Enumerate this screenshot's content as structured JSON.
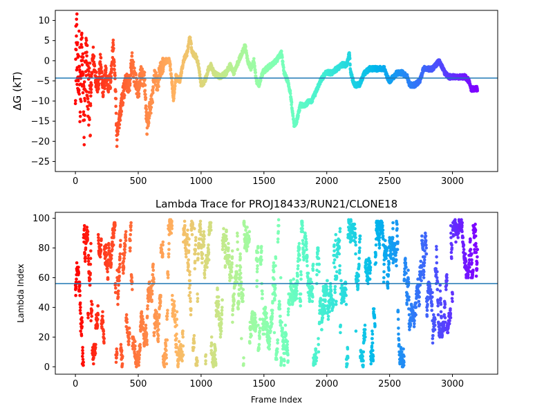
{
  "chart_data": [
    {
      "type": "scatter",
      "ylabel": "ΔG (kT)",
      "xlabel": "",
      "title": "",
      "xlim": [
        -160,
        3360
      ],
      "ylim": [
        -27.5,
        12.5
      ],
      "x_ticks": [
        0,
        500,
        1000,
        1500,
        2000,
        2500,
        3000
      ],
      "y_ticks": [
        10,
        5,
        0,
        -5,
        -10,
        -15,
        -20,
        -25
      ],
      "reference_line": -4.3,
      "colormap": "rainbow (red at start → violet at end)",
      "n_frames": 3200,
      "trace_anchors": [
        [
          0,
          -2
        ],
        [
          10,
          6
        ],
        [
          20,
          -8
        ],
        [
          30,
          2
        ],
        [
          40,
          -12
        ],
        [
          50,
          4
        ],
        [
          60,
          -6
        ],
        [
          70,
          -14
        ],
        [
          80,
          -4
        ],
        [
          90,
          0
        ],
        [
          100,
          -8
        ],
        [
          120,
          -10
        ],
        [
          140,
          2
        ],
        [
          160,
          -4
        ],
        [
          180,
          -6
        ],
        [
          200,
          0
        ],
        [
          220,
          -8
        ],
        [
          240,
          -3
        ],
        [
          260,
          -6
        ],
        [
          280,
          -5
        ],
        [
          300,
          4
        ],
        [
          320,
          -8
        ],
        [
          330,
          -20
        ],
        [
          350,
          -14
        ],
        [
          370,
          -10
        ],
        [
          400,
          -5
        ],
        [
          430,
          -6
        ],
        [
          450,
          0
        ],
        [
          470,
          -4
        ],
        [
          500,
          -8
        ],
        [
          520,
          -3
        ],
        [
          550,
          -5
        ],
        [
          570,
          -17
        ],
        [
          590,
          -12
        ],
        [
          610,
          -10
        ],
        [
          630,
          -3
        ],
        [
          650,
          -6
        ],
        [
          680,
          -2
        ],
        [
          700,
          -1
        ],
        [
          720,
          0
        ],
        [
          750,
          0
        ],
        [
          770,
          -6
        ],
        [
          780,
          -10
        ],
        [
          800,
          -4
        ],
        [
          830,
          -5
        ],
        [
          860,
          0
        ],
        [
          890,
          2
        ],
        [
          910,
          6
        ],
        [
          930,
          2
        ],
        [
          960,
          1
        ],
        [
          980,
          -1
        ],
        [
          1000,
          -6
        ],
        [
          1030,
          -5
        ],
        [
          1060,
          -2
        ],
        [
          1080,
          -1
        ],
        [
          1100,
          -3
        ],
        [
          1150,
          -4
        ],
        [
          1200,
          -3
        ],
        [
          1230,
          -1
        ],
        [
          1260,
          -3
        ],
        [
          1300,
          0
        ],
        [
          1340,
          3
        ],
        [
          1350,
          4
        ],
        [
          1370,
          0
        ],
        [
          1400,
          -2
        ],
        [
          1420,
          0
        ],
        [
          1440,
          -5
        ],
        [
          1460,
          -6
        ],
        [
          1490,
          -3
        ],
        [
          1520,
          -2
        ],
        [
          1560,
          -1
        ],
        [
          1600,
          0
        ],
        [
          1640,
          2
        ],
        [
          1660,
          -3
        ],
        [
          1690,
          -5
        ],
        [
          1710,
          -8
        ],
        [
          1740,
          -16
        ],
        [
          1760,
          -15
        ],
        [
          1790,
          -11
        ],
        [
          1830,
          -11
        ],
        [
          1860,
          -10
        ],
        [
          1880,
          -10
        ],
        [
          1910,
          -8
        ],
        [
          1950,
          -5
        ],
        [
          1990,
          -3
        ],
        [
          2040,
          -3
        ],
        [
          2080,
          -2
        ],
        [
          2120,
          -1
        ],
        [
          2160,
          -1
        ],
        [
          2180,
          2
        ],
        [
          2190,
          -3
        ],
        [
          2220,
          -6
        ],
        [
          2260,
          -6
        ],
        [
          2300,
          -3
        ],
        [
          2340,
          -2
        ],
        [
          2380,
          -2
        ],
        [
          2420,
          -2
        ],
        [
          2460,
          -2
        ],
        [
          2480,
          -4
        ],
        [
          2500,
          -5
        ],
        [
          2530,
          -4
        ],
        [
          2560,
          -3
        ],
        [
          2600,
          -3
        ],
        [
          2640,
          -4
        ],
        [
          2660,
          -6
        ],
        [
          2700,
          -6
        ],
        [
          2740,
          -5
        ],
        [
          2770,
          -2
        ],
        [
          2800,
          -2
        ],
        [
          2840,
          -2
        ],
        [
          2870,
          -1
        ],
        [
          2890,
          0
        ],
        [
          2910,
          -1
        ],
        [
          2940,
          -3
        ],
        [
          2970,
          -4
        ],
        [
          3000,
          -4
        ],
        [
          3050,
          -4
        ],
        [
          3100,
          -4
        ],
        [
          3130,
          -5
        ],
        [
          3150,
          -7
        ],
        [
          3200,
          -7
        ]
      ]
    },
    {
      "type": "scatter",
      "title": "Lambda Trace for PROJ18433/RUN21/CLONE18",
      "xlabel": "Frame Index",
      "ylabel": "Lambda Index",
      "xlim": [
        -160,
        3360
      ],
      "ylim": [
        -5,
        104
      ],
      "x_ticks": [
        0,
        500,
        1000,
        1500,
        2000,
        2500,
        3000
      ],
      "y_ticks": [
        0,
        20,
        40,
        60,
        80,
        100
      ],
      "reference_line": 56,
      "colormap": "rainbow (red at start → violet at end)",
      "n_frames": 3200,
      "value_range": [
        0,
        99
      ],
      "segments": [
        {
          "x_range": [
            0,
            100
          ],
          "y_range": [
            0,
            99
          ]
        },
        {
          "x_range": [
            100,
            1700
          ],
          "y_range": [
            0,
            99
          ]
        },
        {
          "x_range": [
            1700,
            1800
          ],
          "y_range": [
            40,
            99
          ]
        },
        {
          "x_range": [
            1800,
            2700
          ],
          "y_range": [
            0,
            99
          ]
        },
        {
          "x_range": [
            2700,
            2880
          ],
          "y_range": [
            0,
            90
          ]
        },
        {
          "x_range": [
            2880,
            3000
          ],
          "y_range": [
            20,
            99
          ]
        },
        {
          "x_range": [
            3000,
            3100
          ],
          "y_range": [
            10,
            99
          ]
        },
        {
          "x_range": [
            3100,
            3200
          ],
          "y_range": [
            60,
            99
          ]
        }
      ]
    }
  ],
  "colors": {
    "reference_line": "#1f77b4",
    "axes": "#000000",
    "background": "#ffffff"
  }
}
